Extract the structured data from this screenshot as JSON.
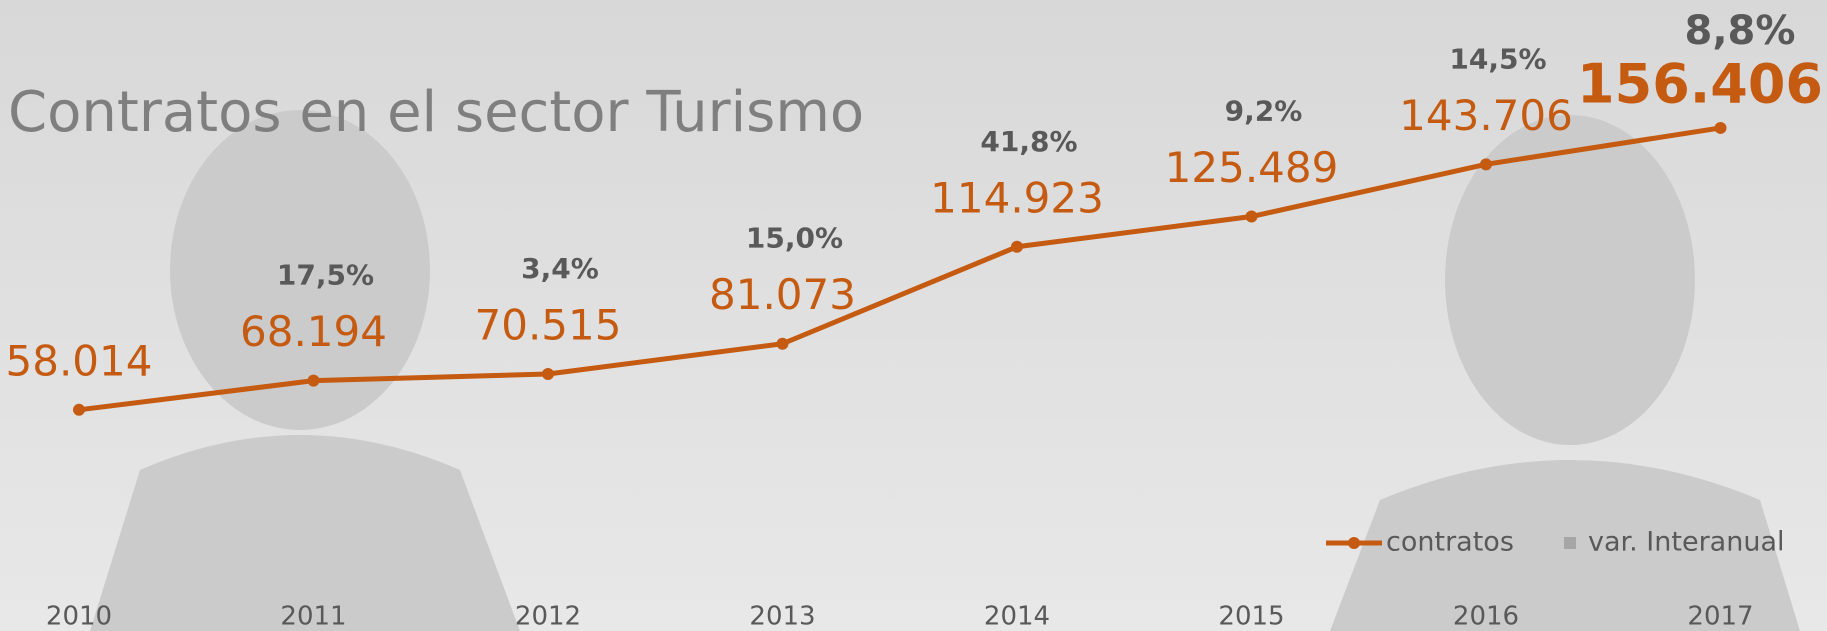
{
  "chart_data": {
    "type": "line",
    "title": "Contratos en el sector Turismo",
    "categories": [
      "2010",
      "2011",
      "2012",
      "2013",
      "2014",
      "2015",
      "2016",
      "2017"
    ],
    "series": [
      {
        "name": "contratos",
        "color": "#c55a11",
        "values": [
          58014,
          68194,
          70515,
          81073,
          114923,
          125489,
          143706,
          156406
        ],
        "value_labels": [
          "58.014",
          "68.194",
          "70.515",
          "81.073",
          "114.923",
          "125.489",
          "143.706",
          "156.406"
        ]
      },
      {
        "name": "var. Interanual",
        "color": "#a6a6a6",
        "values": [
          null,
          17.5,
          3.4,
          15.0,
          41.8,
          9.2,
          14.5,
          8.8
        ],
        "value_labels": [
          null,
          "17,5%",
          "3,4%",
          "15,0%",
          "41,8%",
          "9,2%",
          "14,5%",
          "8,8%"
        ]
      }
    ],
    "ylim": [
      0,
      170000
    ],
    "legend": "bottom-right"
  }
}
